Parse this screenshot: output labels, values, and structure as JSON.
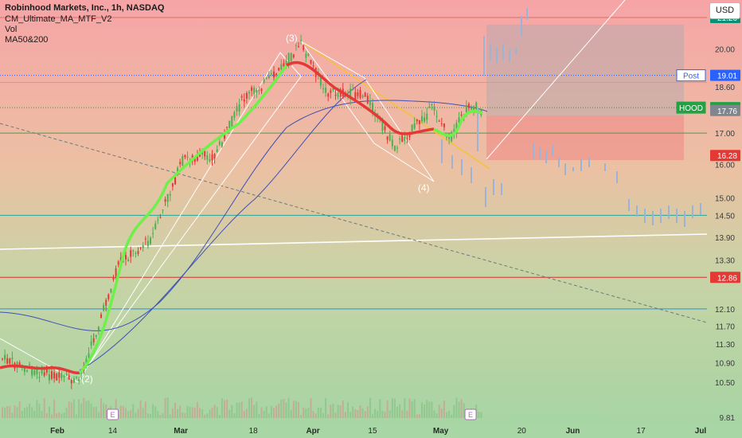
{
  "header": {
    "symbol_line": "Robinhood Markets, Inc., 1h, NASDAQ",
    "indicators": [
      "CM_Ultimate_MA_MTF_V2",
      "Vol",
      "MA50&200"
    ]
  },
  "currency_button": "USD",
  "chart_data": {
    "type": "candlestick",
    "title": "Robinhood Markets, Inc., 1h, NASDAQ",
    "y_axis": {
      "ticks": [
        21.0,
        20.0,
        18.6,
        18.0,
        17.0,
        16.0,
        15.0,
        14.5,
        13.9,
        13.3,
        12.7,
        12.1,
        11.7,
        11.3,
        10.9,
        10.5,
        9.81
      ],
      "scale": "log"
    },
    "x_axis": {
      "ticks": [
        {
          "label": "Feb",
          "date": "2024-02-01"
        },
        {
          "label": "14",
          "date": "2024-02-14"
        },
        {
          "label": "Mar",
          "date": "2024-03-01"
        },
        {
          "label": "18",
          "date": "2024-03-18"
        },
        {
          "label": "Apr",
          "date": "2024-04-01"
        },
        {
          "label": "15",
          "date": "2024-04-15"
        },
        {
          "label": "May",
          "date": "2024-05-01"
        },
        {
          "label": "20",
          "date": "2024-05-20"
        },
        {
          "label": "Jun",
          "date": "2024-06-01"
        },
        {
          "label": "17",
          "date": "2024-06-17"
        },
        {
          "label": "Jul",
          "date": "2024-07-01"
        }
      ]
    },
    "price_labels": [
      {
        "text": "21.26",
        "price": 21.26,
        "color": "#0e8f74",
        "line_color": "#e06b6b"
      },
      {
        "text": "19.01",
        "price": 19.01,
        "color": "#2962ff",
        "tag": "Post"
      },
      {
        "text": "17.86",
        "price": 17.86,
        "color": "#22a245",
        "tag": "HOOD"
      },
      {
        "text": "17.76",
        "price": 17.76,
        "color": "#80868f"
      },
      {
        "text": "16.28",
        "price": 16.28,
        "color": "#e53935"
      },
      {
        "text": "12.86",
        "price": 12.86,
        "color": "#e53935",
        "line_color": "#d32f2f"
      }
    ],
    "horizontal_levels": [
      {
        "price": 18.75,
        "color": "#f0a020"
      },
      {
        "price": 17.0,
        "color": "#43a047"
      },
      {
        "price": 14.5,
        "color": "#26a69a"
      },
      {
        "price": 12.1,
        "color": "#2196f3"
      }
    ],
    "wave_labels": [
      {
        "text": "(2)",
        "date": "2024-02-08",
        "price": 10.5
      },
      {
        "text": "(3)",
        "date": "2024-03-27",
        "price": 20.3
      },
      {
        "text": "(4)",
        "date": "2024-04-27",
        "price": 15.2
      }
    ],
    "event_markers": [
      {
        "text": "E",
        "date": "2024-02-14"
      },
      {
        "text": "E",
        "date": "2024-05-08"
      }
    ],
    "colors": {
      "up": "#4caf50",
      "down": "#e53935",
      "ma_up": "#6ef04a",
      "ma_down": "#e53935",
      "projection": "#9ab3d6"
    }
  }
}
